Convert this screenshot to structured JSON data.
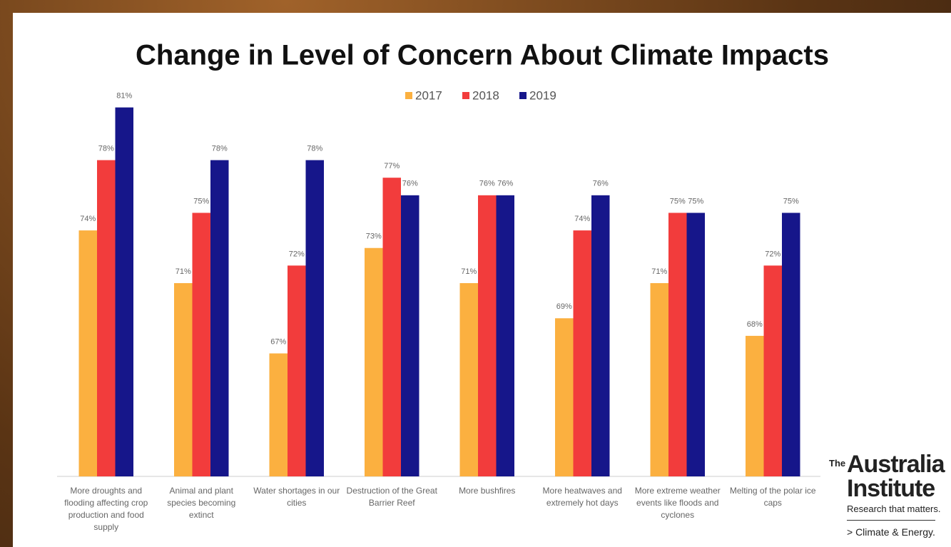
{
  "chart_data": {
    "type": "bar",
    "title": "Change in Level of Concern About Climate Impacts",
    "categories": [
      "More droughts and flooding affecting crop production and food supply",
      "Animal and plant species becoming extinct",
      "Water shortages in our cities",
      "Destruction of the Great Barrier Reef",
      "More bushfires",
      "More heatwaves and extremely hot days",
      "More extreme weather events like floods and cyclones",
      "Melting of the polar ice caps"
    ],
    "series": [
      {
        "name": "2017",
        "color": "#fbb040",
        "values": [
          74,
          71,
          67,
          73,
          71,
          69,
          71,
          68
        ],
        "value_labels": [
          "74%",
          "71%",
          "67%",
          "73%",
          "71%",
          "69%",
          "71%",
          "68%"
        ]
      },
      {
        "name": "2018",
        "color": "#f23c3c",
        "values": [
          78,
          75,
          72,
          77,
          76,
          74,
          75,
          72
        ],
        "value_labels": [
          "78%",
          "75%",
          "72%",
          "77%",
          "76%",
          "74%",
          "75%",
          "72%"
        ]
      },
      {
        "name": "2019",
        "color": "#16168a",
        "values": [
          81,
          78,
          78,
          76,
          76,
          76,
          75,
          75
        ],
        "value_labels": [
          "81%",
          "78%",
          "78%",
          "76%",
          "76%",
          "76%",
          "75%",
          "75%"
        ]
      }
    ],
    "ylim": [
      60,
      82
    ],
    "grid": false,
    "legend": "top"
  },
  "logo": {
    "prefix": "The",
    "name1": "Australia",
    "name2": "Institute",
    "tagline": "Research that matters.",
    "program": "> Climate & Energy."
  }
}
